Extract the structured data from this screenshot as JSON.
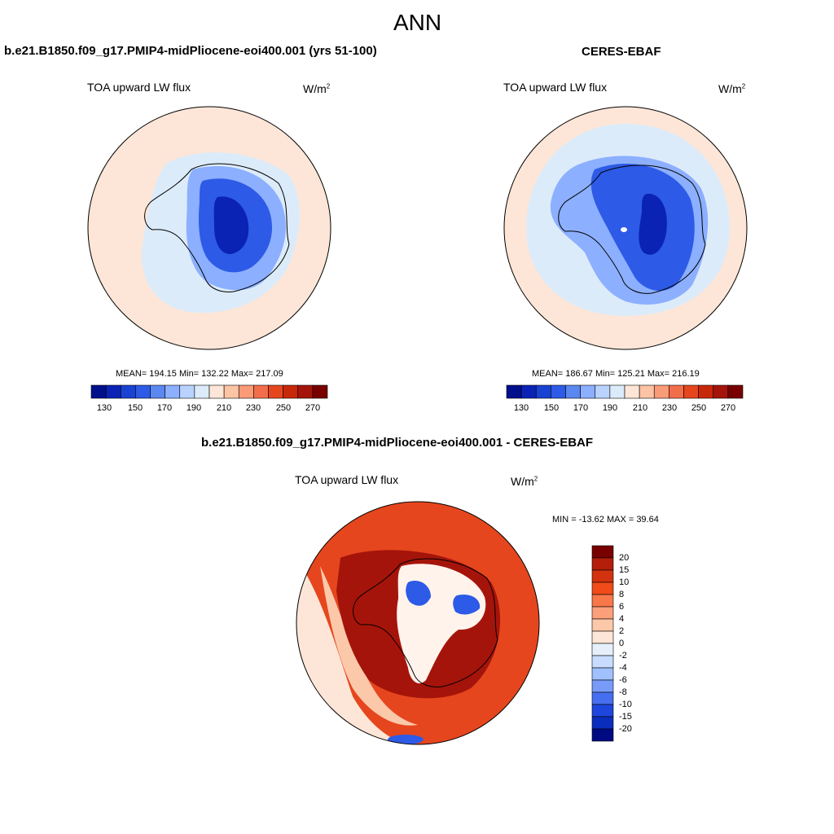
{
  "figure": {
    "title": "ANN",
    "units": "W/m",
    "units_sup": "2"
  },
  "panels": {
    "model": {
      "header": "b.e21.B1850.f09_g17.PMIP4-midPliocene-eoi400.001 (yrs 51-100)",
      "variable": "TOA upward LW flux",
      "stats": "MEAN= 194.15  Min= 132.22  Max= 217.09"
    },
    "obs": {
      "header": "CERES-EBAF",
      "variable": "TOA upward LW flux",
      "stats": "MEAN= 186.67  Min= 125.21  Max= 216.19"
    },
    "diff": {
      "header": "b.e21.B1850.f09_g17.PMIP4-midPliocene-eoi400.001 - CERES-EBAF",
      "variable": "TOA upward LW flux",
      "stats": "MIN = -13.62 MAX =  39.64"
    }
  },
  "colorbars": {
    "abs": {
      "colors": [
        "#000f8c",
        "#0a23b4",
        "#1941d2",
        "#2d5ae6",
        "#5a87f0",
        "#8cafff",
        "#b9d2ff",
        "#dcebfa",
        "#fde6d7",
        "#fcc3a5",
        "#fa9b78",
        "#f26e4b",
        "#e6461e",
        "#c8280a",
        "#a5140a",
        "#780000"
      ],
      "ticks": [
        "130",
        "150",
        "170",
        "190",
        "210",
        "230",
        "250",
        "270"
      ]
    },
    "diff": {
      "colors": [
        "#780000",
        "#b41e0a",
        "#d2320f",
        "#f04b19",
        "#f8784a",
        "#fba07a",
        "#fcc8aa",
        "#fde6d7",
        "#e6f0fa",
        "#c8dcff",
        "#a0c0ff",
        "#789bfa",
        "#466ef0",
        "#1e46dc",
        "#0a2dbe",
        "#000a82"
      ],
      "ticks": [
        "20",
        "15",
        "10",
        "8",
        "6",
        "4",
        "2",
        "0",
        "-2",
        "-4",
        "-6",
        "-8",
        "-10",
        "-15",
        "-20"
      ]
    }
  },
  "colors": {
    "outer_ring": "#fde6d7",
    "rim_band": "#fcc8aa",
    "ocean_light": "#dcebfa",
    "ice_mid": "#8cafff",
    "ice_dark": "#2d5ae6",
    "ice_core": "#0a23b4",
    "diff_red": "#e6461e",
    "diff_dark": "#a5140a",
    "diff_white": "#fff3ec"
  }
}
